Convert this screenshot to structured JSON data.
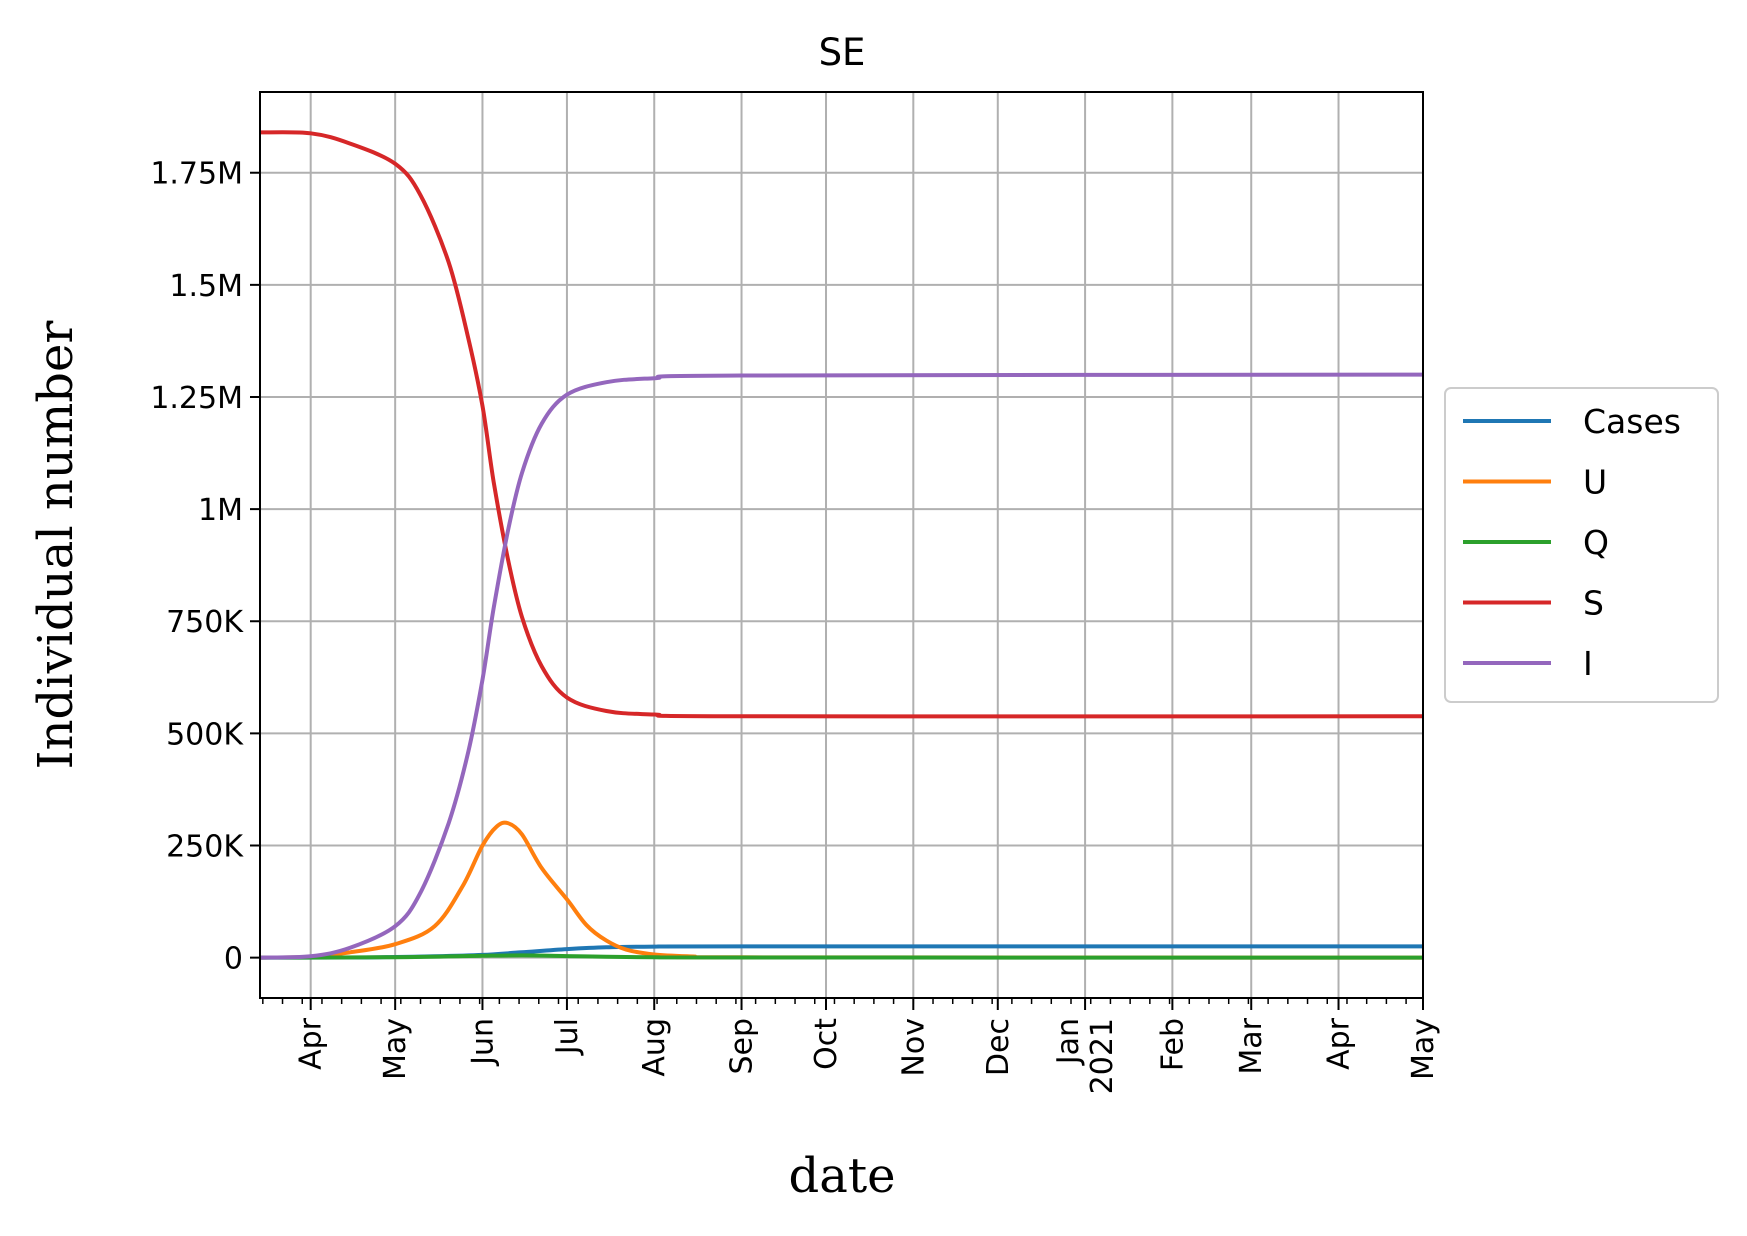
{
  "chart_data": {
    "type": "line",
    "title": "SE",
    "xlabel": "date",
    "ylabel": "Individual number",
    "x_range": [
      "2020-03-14",
      "2021-05-01"
    ],
    "ylim": [
      -90000,
      1930000
    ],
    "grid": true,
    "legend_position": "right, outside the plot area",
    "x_ticks": [
      {
        "date": "2020-04-01",
        "label": "Apr"
      },
      {
        "date": "2020-05-01",
        "label": "May"
      },
      {
        "date": "2020-06-01",
        "label": "Jun"
      },
      {
        "date": "2020-07-01",
        "label": "Jul"
      },
      {
        "date": "2020-08-01",
        "label": "Aug"
      },
      {
        "date": "2020-09-01",
        "label": "Sep"
      },
      {
        "date": "2020-10-01",
        "label": "Oct"
      },
      {
        "date": "2020-11-01",
        "label": "Nov"
      },
      {
        "date": "2020-12-01",
        "label": "Dec"
      },
      {
        "date": "2021-01-01",
        "label": "Jan\n2021"
      },
      {
        "date": "2021-02-01",
        "label": "Feb"
      },
      {
        "date": "2021-03-01",
        "label": "Mar"
      },
      {
        "date": "2021-04-01",
        "label": "Apr"
      },
      {
        "date": "2021-05-01",
        "label": "May"
      }
    ],
    "y_ticks": [
      {
        "value": 0,
        "label": "0"
      },
      {
        "value": 250000,
        "label": "250K"
      },
      {
        "value": 500000,
        "label": "500K"
      },
      {
        "value": 750000,
        "label": "750K"
      },
      {
        "value": 1000000,
        "label": "1M"
      },
      {
        "value": 1250000,
        "label": "1.25M"
      },
      {
        "value": 1500000,
        "label": "1.5M"
      },
      {
        "value": 1750000,
        "label": "1.75M"
      }
    ],
    "series": [
      {
        "name": "Cases",
        "color": "#1f77b4",
        "points": [
          [
            "2020-03-14",
            0
          ],
          [
            "2020-04-15",
            300
          ],
          [
            "2020-05-01",
            1500
          ],
          [
            "2020-05-15",
            3000
          ],
          [
            "2020-06-01",
            6000
          ],
          [
            "2020-06-15",
            12000
          ],
          [
            "2020-07-01",
            19000
          ],
          [
            "2020-07-15",
            23000
          ],
          [
            "2020-08-01",
            24500
          ],
          [
            "2020-09-01",
            25000
          ],
          [
            "2021-05-01",
            25000
          ]
        ]
      },
      {
        "name": "U",
        "color": "#ff7f0e",
        "points": [
          [
            "2020-03-14",
            0
          ],
          [
            "2020-04-01",
            2000
          ],
          [
            "2020-04-15",
            12000
          ],
          [
            "2020-05-01",
            30000
          ],
          [
            "2020-05-15",
            70000
          ],
          [
            "2020-05-25",
            160000
          ],
          [
            "2020-06-01",
            250000
          ],
          [
            "2020-06-06",
            292000
          ],
          [
            "2020-06-10",
            300000
          ],
          [
            "2020-06-15",
            275000
          ],
          [
            "2020-06-22",
            200000
          ],
          [
            "2020-07-01",
            130000
          ],
          [
            "2020-07-08",
            72000
          ],
          [
            "2020-07-15",
            38000
          ],
          [
            "2020-07-22",
            18000
          ],
          [
            "2020-08-01",
            7000
          ],
          [
            "2020-08-15",
            2500
          ],
          [
            "2020-09-01",
            800
          ],
          [
            "2021-05-01",
            0
          ]
        ]
      },
      {
        "name": "Q",
        "color": "#2ca02c",
        "points": [
          [
            "2020-03-14",
            0
          ],
          [
            "2020-05-01",
            1000
          ],
          [
            "2020-06-01",
            4000
          ],
          [
            "2020-06-15",
            5000
          ],
          [
            "2020-07-01",
            3500
          ],
          [
            "2020-07-15",
            2000
          ],
          [
            "2020-08-01",
            800
          ],
          [
            "2020-09-01",
            200
          ],
          [
            "2021-05-01",
            0
          ]
        ]
      },
      {
        "name": "S",
        "color": "#d62728",
        "points": [
          [
            "2020-03-14",
            1840000
          ],
          [
            "2020-04-01",
            1838000
          ],
          [
            "2020-04-15",
            1815000
          ],
          [
            "2020-05-01",
            1770000
          ],
          [
            "2020-05-10",
            1700000
          ],
          [
            "2020-05-20",
            1550000
          ],
          [
            "2020-05-27",
            1380000
          ],
          [
            "2020-06-01",
            1230000
          ],
          [
            "2020-06-05",
            1060000
          ],
          [
            "2020-06-10",
            890000
          ],
          [
            "2020-06-15",
            760000
          ],
          [
            "2020-06-22",
            650000
          ],
          [
            "2020-07-01",
            580000
          ],
          [
            "2020-07-15",
            550000
          ],
          [
            "2020-08-01",
            542000
          ],
          [
            "2020-09-01",
            538000
          ],
          [
            "2021-05-01",
            538000
          ]
        ]
      },
      {
        "name": "I",
        "color": "#9467bd",
        "points": [
          [
            "2020-03-14",
            0
          ],
          [
            "2020-04-01",
            3000
          ],
          [
            "2020-04-15",
            22000
          ],
          [
            "2020-05-01",
            70000
          ],
          [
            "2020-05-10",
            145000
          ],
          [
            "2020-05-20",
            300000
          ],
          [
            "2020-05-27",
            460000
          ],
          [
            "2020-06-01",
            620000
          ],
          [
            "2020-06-05",
            780000
          ],
          [
            "2020-06-10",
            950000
          ],
          [
            "2020-06-15",
            1080000
          ],
          [
            "2020-06-22",
            1190000
          ],
          [
            "2020-07-01",
            1255000
          ],
          [
            "2020-07-15",
            1283000
          ],
          [
            "2020-08-01",
            1292000
          ],
          [
            "2020-09-01",
            1298000
          ],
          [
            "2021-05-01",
            1300000
          ]
        ]
      }
    ]
  }
}
